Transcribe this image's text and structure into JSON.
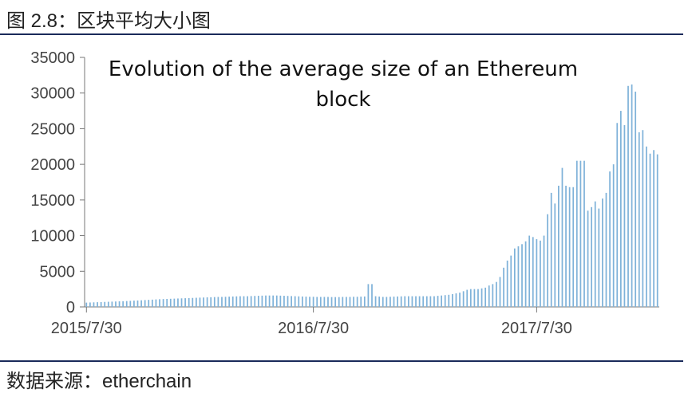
{
  "figure": {
    "label": "图 2.8：区块平均大小图",
    "source": "数据来源：etherchain"
  },
  "chart_data": {
    "type": "bar",
    "title_lines": [
      "Evolution of the average size of an Ethereum",
      "block"
    ],
    "xlabel": "",
    "ylabel": "",
    "ylim": [
      0,
      35000
    ],
    "yticks": [
      0,
      5000,
      10000,
      15000,
      20000,
      25000,
      30000,
      35000
    ],
    "xtick_labels": [
      "2015/7/30",
      "2016/7/30",
      "2017/7/30"
    ],
    "xtick_label_indices": [
      0,
      62,
      123
    ],
    "bar_color": "#7fb2d9",
    "grid": false,
    "legend": "none",
    "values": [
      600,
      620,
      640,
      660,
      680,
      700,
      720,
      740,
      760,
      780,
      800,
      820,
      850,
      880,
      900,
      930,
      960,
      990,
      1020,
      1050,
      1080,
      1100,
      1120,
      1140,
      1160,
      1180,
      1200,
      1220,
      1240,
      1260,
      1280,
      1300,
      1320,
      1340,
      1360,
      1380,
      1400,
      1400,
      1420,
      1440,
      1460,
      1480,
      1500,
      1500,
      1500,
      1520,
      1540,
      1560,
      1580,
      1600,
      1600,
      1600,
      1600,
      1580,
      1560,
      1540,
      1520,
      1500,
      1480,
      1460,
      1440,
      1420,
      1420,
      1400,
      1400,
      1400,
      1400,
      1380,
      1380,
      1380,
      1400,
      1400,
      1400,
      1420,
      1420,
      1440,
      1460,
      3200,
      3200,
      1500,
      1450,
      1400,
      1400,
      1420,
      1440,
      1460,
      1480,
      1500,
      1500,
      1500,
      1500,
      1500,
      1500,
      1500,
      1500,
      1500,
      1550,
      1600,
      1650,
      1700,
      1800,
      1900,
      2000,
      2200,
      2400,
      2500,
      2500,
      2500,
      2600,
      2700,
      3000,
      3200,
      3500,
      4200,
      5500,
      6500,
      7200,
      8200,
      8500,
      8800,
      9200,
      10000,
      9800,
      9500,
      9300,
      10000,
      13000,
      16000,
      14500,
      17000,
      19500,
      17000,
      16800,
      16800,
      20500,
      20500,
      20500,
      13500,
      14000,
      14800,
      13800,
      15200,
      16000,
      19000,
      20000,
      25800,
      27500,
      25500,
      31000,
      31200,
      30200,
      24500,
      24800,
      22500,
      21500,
      22000,
      21400
    ]
  }
}
